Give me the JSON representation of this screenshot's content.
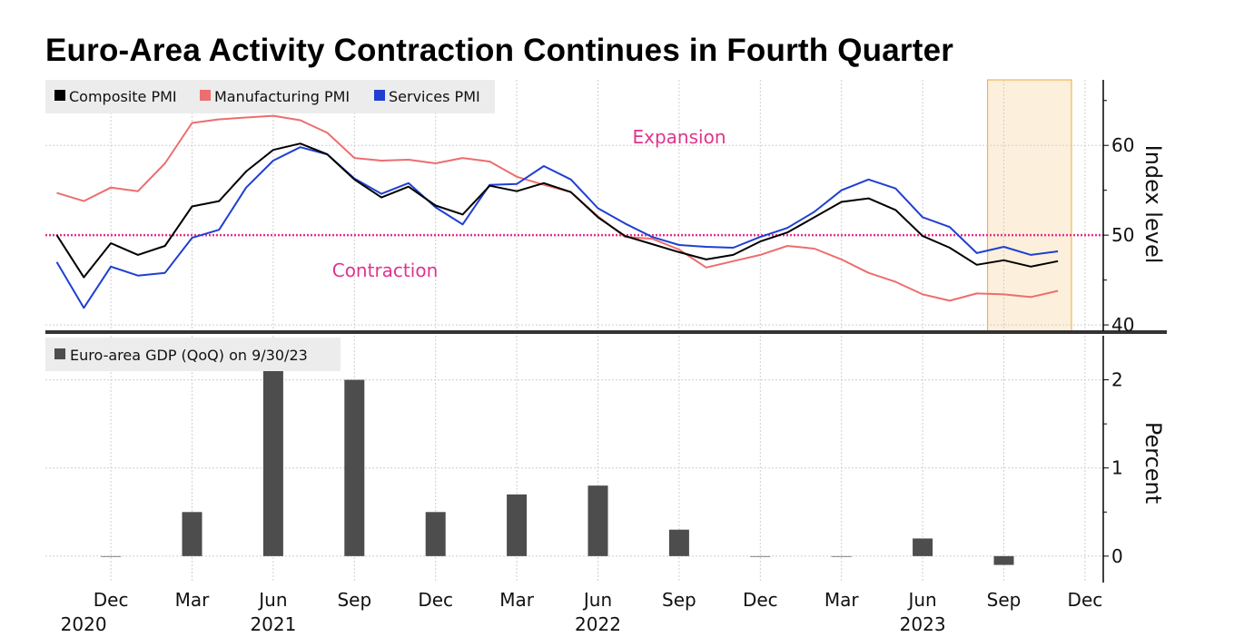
{
  "chart_data": [
    {
      "type": "line",
      "title": "Euro-Area Activity Contraction Continues in Fourth Quarter",
      "ylabel": "Index level",
      "ylim": [
        39.3,
        67.3
      ],
      "yticks": [
        40,
        50,
        60
      ],
      "grid": true,
      "legend_placement": "top-left",
      "x": [
        "Oct 2020",
        "Nov 2020",
        "Dec 2020",
        "Jan 2021",
        "Feb 2021",
        "Mar 2021",
        "Apr 2021",
        "May 2021",
        "Jun 2021",
        "Jul 2021",
        "Aug 2021",
        "Sep 2021",
        "Oct 2021",
        "Nov 2021",
        "Dec 2021",
        "Jan 2022",
        "Feb 2022",
        "Mar 2022",
        "Apr 2022",
        "May 2022",
        "Jun 2022",
        "Jul 2022",
        "Aug 2022",
        "Sep 2022",
        "Oct 2022",
        "Nov 2022",
        "Dec 2022",
        "Jan 2023",
        "Feb 2023",
        "Mar 2023",
        "Apr 2023",
        "May 2023",
        "Jun 2023",
        "Jul 2023",
        "Aug 2023",
        "Sep 2023",
        "Oct 2023",
        "Nov 2023"
      ],
      "series": [
        {
          "name": "Composite PMI",
          "color": "#000000",
          "values": [
            50.0,
            45.3,
            49.1,
            47.8,
            48.8,
            53.2,
            53.8,
            57.1,
            59.5,
            60.2,
            59.0,
            56.2,
            54.2,
            55.4,
            53.3,
            52.3,
            55.5,
            54.9,
            55.8,
            54.8,
            52.0,
            49.9,
            49.0,
            48.1,
            47.3,
            47.8,
            49.3,
            50.3,
            52.0,
            53.7,
            54.1,
            52.8,
            49.9,
            48.6,
            46.7,
            47.2,
            46.5,
            47.1
          ]
        },
        {
          "name": "Manufacturing PMI",
          "color": "#ec6e6e",
          "values": [
            54.7,
            53.8,
            55.3,
            54.9,
            58.0,
            62.5,
            62.9,
            63.1,
            63.3,
            62.8,
            61.4,
            58.6,
            58.3,
            58.4,
            58.0,
            58.6,
            58.2,
            56.5,
            55.6,
            54.8,
            52.1,
            49.8,
            49.6,
            48.4,
            46.4,
            47.1,
            47.8,
            48.8,
            48.5,
            47.3,
            45.8,
            44.8,
            43.4,
            42.7,
            43.5,
            43.4,
            43.1,
            43.8
          ]
        },
        {
          "name": "Services PMI",
          "color": "#1f3fd1",
          "values": [
            47.0,
            41.9,
            46.5,
            45.5,
            45.8,
            49.7,
            50.6,
            55.3,
            58.3,
            59.8,
            59.0,
            56.3,
            54.6,
            55.8,
            53.1,
            51.2,
            55.6,
            55.7,
            57.7,
            56.2,
            53.0,
            51.3,
            49.8,
            48.9,
            48.7,
            48.6,
            49.8,
            50.8,
            52.6,
            55.0,
            56.2,
            55.2,
            52.0,
            50.9,
            48.0,
            48.7,
            47.8,
            48.2
          ]
        }
      ],
      "threshold": {
        "value": 50,
        "color": "#e0348c"
      },
      "annotations": [
        {
          "text": "Expansion",
          "color": "#e0348c"
        },
        {
          "text": "Contraction",
          "color": "#e0348c"
        }
      ],
      "highlight": {
        "from_index": 34.4,
        "to_index": 37.5,
        "fill": "#fcefdc",
        "stroke": "#f0a830"
      }
    },
    {
      "type": "bar",
      "ylabel": "Percent",
      "ylim": [
        -0.3,
        2.5
      ],
      "yticks": [
        0,
        1,
        2
      ],
      "grid": true,
      "legend_placement": "top-left",
      "series_name": "Euro-area GDP (QoQ) on 9/30/23",
      "color": "#4d4d4d",
      "categories": [
        "Dec 2020",
        "Mar 2021",
        "Jun 2021",
        "Sep 2021",
        "Dec 2021",
        "Mar 2022",
        "Jun 2022",
        "Sep 2022",
        "Dec 2022",
        "Mar 2023",
        "Jun 2023",
        "Sep 2023"
      ],
      "category_month_index": [
        2,
        5,
        8,
        11,
        14,
        17,
        20,
        23,
        26,
        29,
        32,
        35
      ],
      "values": [
        0.0,
        0.5,
        2.1,
        2.0,
        0.5,
        0.7,
        0.8,
        0.3,
        0.0,
        0.0,
        0.2,
        -0.1
      ]
    }
  ],
  "x_axis": {
    "ticks": [
      {
        "month": "Dec",
        "year": "2020",
        "index": 2
      },
      {
        "month": "Mar",
        "year": "",
        "index": 5
      },
      {
        "month": "Jun",
        "year": "2021",
        "index": 8
      },
      {
        "month": "Sep",
        "year": "",
        "index": 11
      },
      {
        "month": "Dec",
        "year": "",
        "index": 14
      },
      {
        "month": "Mar",
        "year": "",
        "index": 17
      },
      {
        "month": "Jun",
        "year": "2022",
        "index": 20
      },
      {
        "month": "Sep",
        "year": "",
        "index": 23
      },
      {
        "month": "Dec",
        "year": "",
        "index": 26
      },
      {
        "month": "Mar",
        "year": "",
        "index": 29
      },
      {
        "month": "Jun",
        "year": "2023",
        "index": 32
      },
      {
        "month": "Sep",
        "year": "",
        "index": 35
      },
      {
        "month": "Dec",
        "year": "",
        "index": 38
      }
    ]
  }
}
